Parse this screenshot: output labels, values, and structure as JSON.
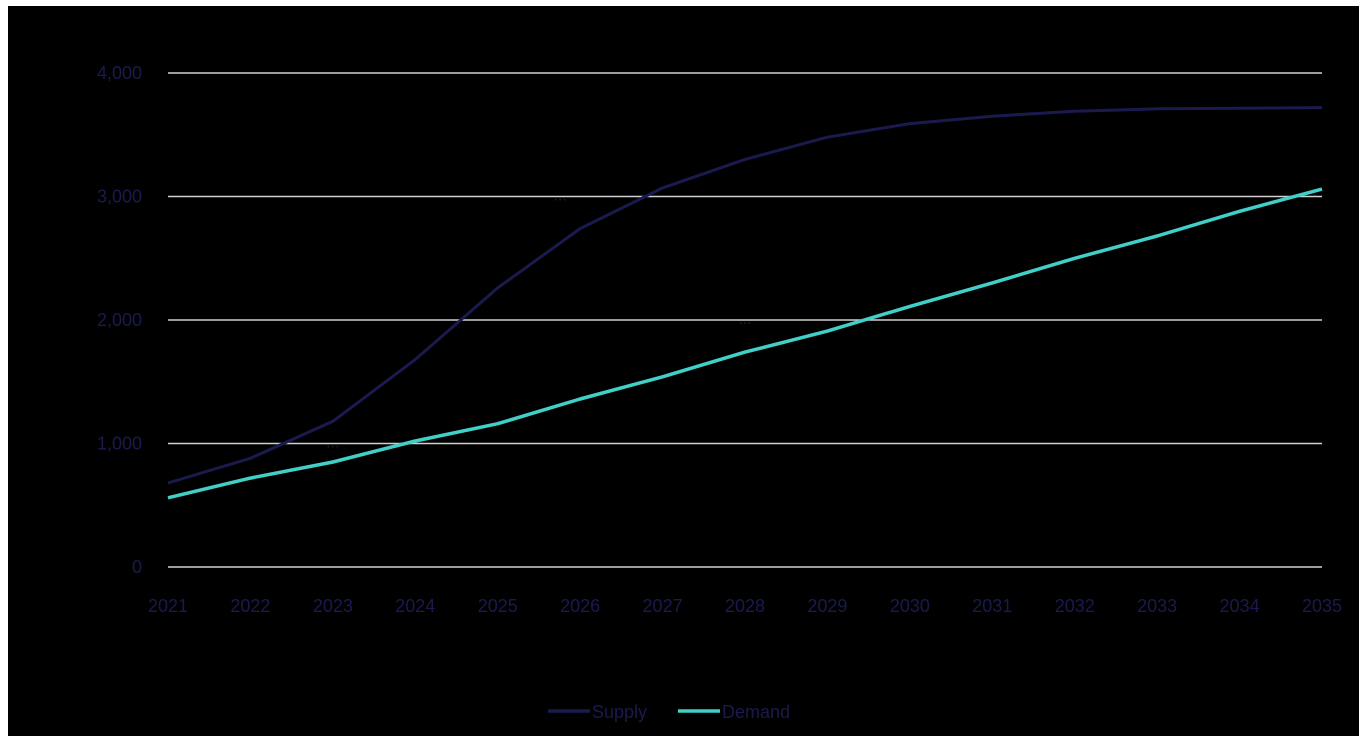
{
  "chart_data": {
    "type": "line",
    "title": "",
    "xlabel": "",
    "ylabel": "",
    "x": [
      "2021",
      "2022",
      "2023",
      "2024",
      "2025",
      "2026",
      "2027",
      "2028",
      "2029",
      "2030",
      "2031",
      "2032",
      "2033",
      "2034",
      "2035"
    ],
    "ylim": [
      0,
      4000
    ],
    "yticks": [
      0,
      1000,
      2000,
      3000,
      4000
    ],
    "ytick_labels": [
      "0",
      "1,000",
      "2,000",
      "3,000",
      "4,000"
    ],
    "grid": true,
    "legend_position": "bottom",
    "series": [
      {
        "name": "Supply",
        "color": "#1a1a4e",
        "values": [
          680,
          880,
          1180,
          1680,
          2260,
          2740,
          3070,
          3300,
          3480,
          3590,
          3650,
          3690,
          3710,
          3715,
          3720
        ]
      },
      {
        "name": "Demand",
        "color": "#40d0c8",
        "values": [
          560,
          720,
          850,
          1020,
          1160,
          1360,
          1540,
          1740,
          1910,
          2110,
          2300,
          2500,
          2680,
          2880,
          3060
        ]
      }
    ],
    "annotations": [
      {
        "x": "2023",
        "y": 1000,
        "text": "..."
      },
      {
        "x": "2026",
        "y": 3000,
        "text": "..."
      },
      {
        "x": "2028",
        "y": 2000,
        "text": "..."
      }
    ]
  },
  "colors": {
    "background": "#000000",
    "grid": "#d0d0d0",
    "tick_text": "#1a1a4e"
  }
}
